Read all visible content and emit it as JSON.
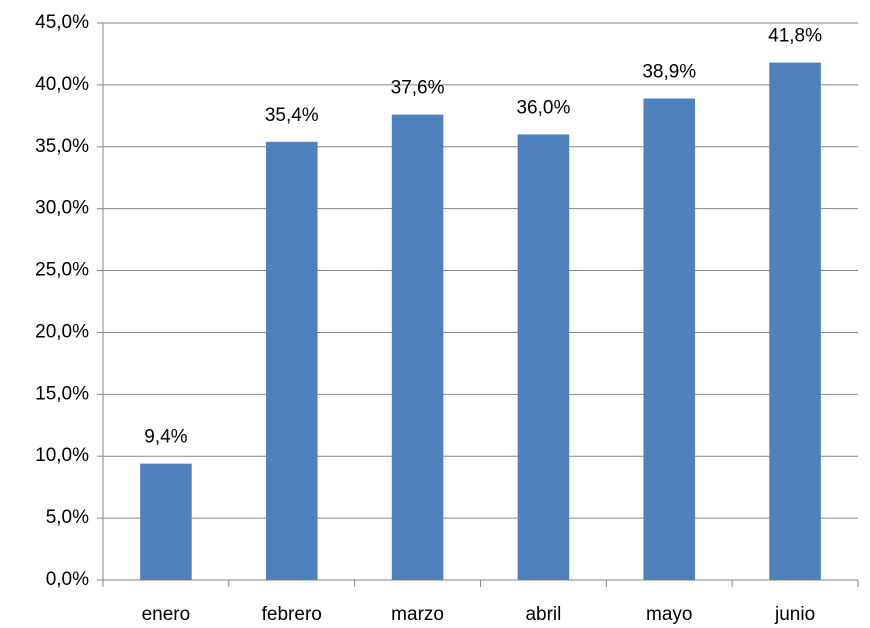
{
  "chart_data": {
    "type": "bar",
    "categories": [
      "enero",
      "febrero",
      "marzo",
      "abril",
      "mayo",
      "junio"
    ],
    "values": [
      9.4,
      35.4,
      37.6,
      36.0,
      38.9,
      41.8
    ],
    "value_labels": [
      "9,4%",
      "35,4%",
      "37,6%",
      "36,0%",
      "38,9%",
      "41,8%"
    ],
    "color": "#4f81bd",
    "ylim": [
      0,
      45
    ],
    "yticks": [
      {
        "value": 0,
        "label": "0,0%"
      },
      {
        "value": 5,
        "label": "5,0%"
      },
      {
        "value": 10,
        "label": "10,0%"
      },
      {
        "value": 15,
        "label": "15,0%"
      },
      {
        "value": 20,
        "label": "20,0%"
      },
      {
        "value": 25,
        "label": "25,0%"
      },
      {
        "value": 30,
        "label": "30,0%"
      },
      {
        "value": 35,
        "label": "35,0%"
      },
      {
        "value": 40,
        "label": "40,0%"
      },
      {
        "value": 45,
        "label": "45,0%"
      }
    ],
    "grid": true
  }
}
